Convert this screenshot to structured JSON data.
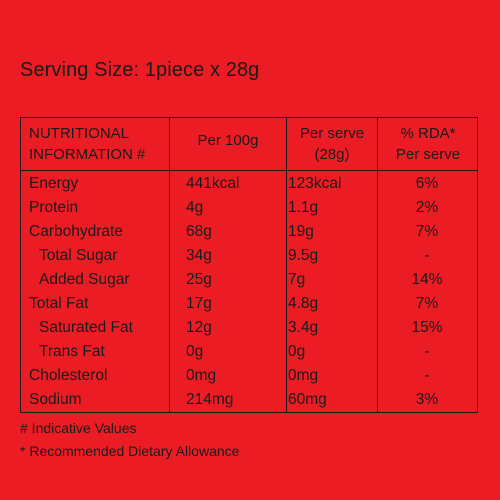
{
  "serving_size": "Serving Size: 1piece x 28g",
  "table": {
    "headers": {
      "nutrient": [
        "NUTRITIONAL",
        "INFORMATION #"
      ],
      "per100": "Per 100g",
      "per_serve": [
        "Per serve",
        "(28g)"
      ],
      "rda": [
        "% RDA*",
        "Per serve"
      ]
    },
    "rows": [
      {
        "name": "Energy",
        "per100": "441kcal",
        "per_serve": "123kcal",
        "rda": "6%",
        "sub": false
      },
      {
        "name": "Protein",
        "per100": "4g",
        "per_serve": "1.1g",
        "rda": "2%",
        "sub": false
      },
      {
        "name": "Carbohydrate",
        "per100": "68g",
        "per_serve": "19g",
        "rda": "7%",
        "sub": false
      },
      {
        "name": "Total Sugar",
        "per100": "34g",
        "per_serve": "9.5g",
        "rda": "-",
        "sub": true
      },
      {
        "name": "Added Sugar",
        "per100": "25g",
        "per_serve": "7g",
        "rda": "14%",
        "sub": true
      },
      {
        "name": "Total Fat",
        "per100": "17g",
        "per_serve": "4.8g",
        "rda": "7%",
        "sub": false
      },
      {
        "name": "Saturated Fat",
        "per100": "12g",
        "per_serve": "3.4g",
        "rda": "15%",
        "sub": true
      },
      {
        "name": "Trans Fat",
        "per100": "0g",
        "per_serve": "0g",
        "rda": "-",
        "sub": true
      },
      {
        "name": "Cholesterol",
        "per100": "0mg",
        "per_serve": "0mg",
        "rda": "-",
        "sub": false
      },
      {
        "name": "Sodium",
        "per100": "214mg",
        "per_serve": "60mg",
        "rda": "3%",
        "sub": false
      }
    ]
  },
  "footnotes": [
    "# Indicative Values",
    "* Recommended Dietary Allowance"
  ],
  "colors": {
    "background": "#EC1C24",
    "text": "#1A1A1A"
  }
}
